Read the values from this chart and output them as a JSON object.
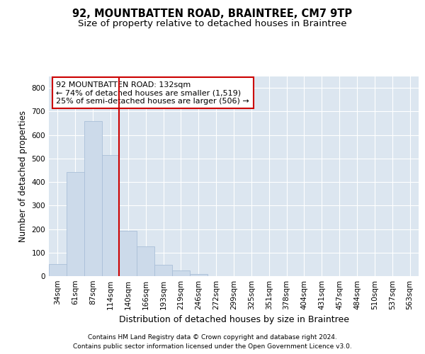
{
  "title": "92, MOUNTBATTEN ROAD, BRAINTREE, CM7 9TP",
  "subtitle": "Size of property relative to detached houses in Braintree",
  "xlabel": "Distribution of detached houses by size in Braintree",
  "ylabel": "Number of detached properties",
  "bar_labels": [
    "34sqm",
    "61sqm",
    "87sqm",
    "114sqm",
    "140sqm",
    "166sqm",
    "193sqm",
    "219sqm",
    "246sqm",
    "272sqm",
    "299sqm",
    "325sqm",
    "351sqm",
    "378sqm",
    "404sqm",
    "431sqm",
    "457sqm",
    "484sqm",
    "510sqm",
    "537sqm",
    "563sqm"
  ],
  "bar_values": [
    50,
    443,
    660,
    516,
    193,
    126,
    48,
    25,
    10,
    0,
    0,
    0,
    0,
    0,
    0,
    0,
    0,
    0,
    0,
    0,
    0
  ],
  "bar_color": "#ccdaea",
  "bar_edgecolor": "#aabfd8",
  "vline_color": "#cc0000",
  "vline_x": 3.5,
  "annotation_text": "92 MOUNTBATTEN ROAD: 132sqm\n← 74% of detached houses are smaller (1,519)\n25% of semi-detached houses are larger (506) →",
  "annotation_box_facecolor": "#ffffff",
  "annotation_box_edgecolor": "#cc0000",
  "ylim": [
    0,
    850
  ],
  "yticks": [
    0,
    100,
    200,
    300,
    400,
    500,
    600,
    700,
    800
  ],
  "fig_facecolor": "#ffffff",
  "axes_facecolor": "#dce6f0",
  "grid_color": "#ffffff",
  "footer_line1": "Contains HM Land Registry data © Crown copyright and database right 2024.",
  "footer_line2": "Contains public sector information licensed under the Open Government Licence v3.0.",
  "title_fontsize": 10.5,
  "subtitle_fontsize": 9.5,
  "xlabel_fontsize": 9,
  "ylabel_fontsize": 8.5,
  "tick_fontsize": 7.5,
  "annot_fontsize": 8,
  "footer_fontsize": 6.5
}
